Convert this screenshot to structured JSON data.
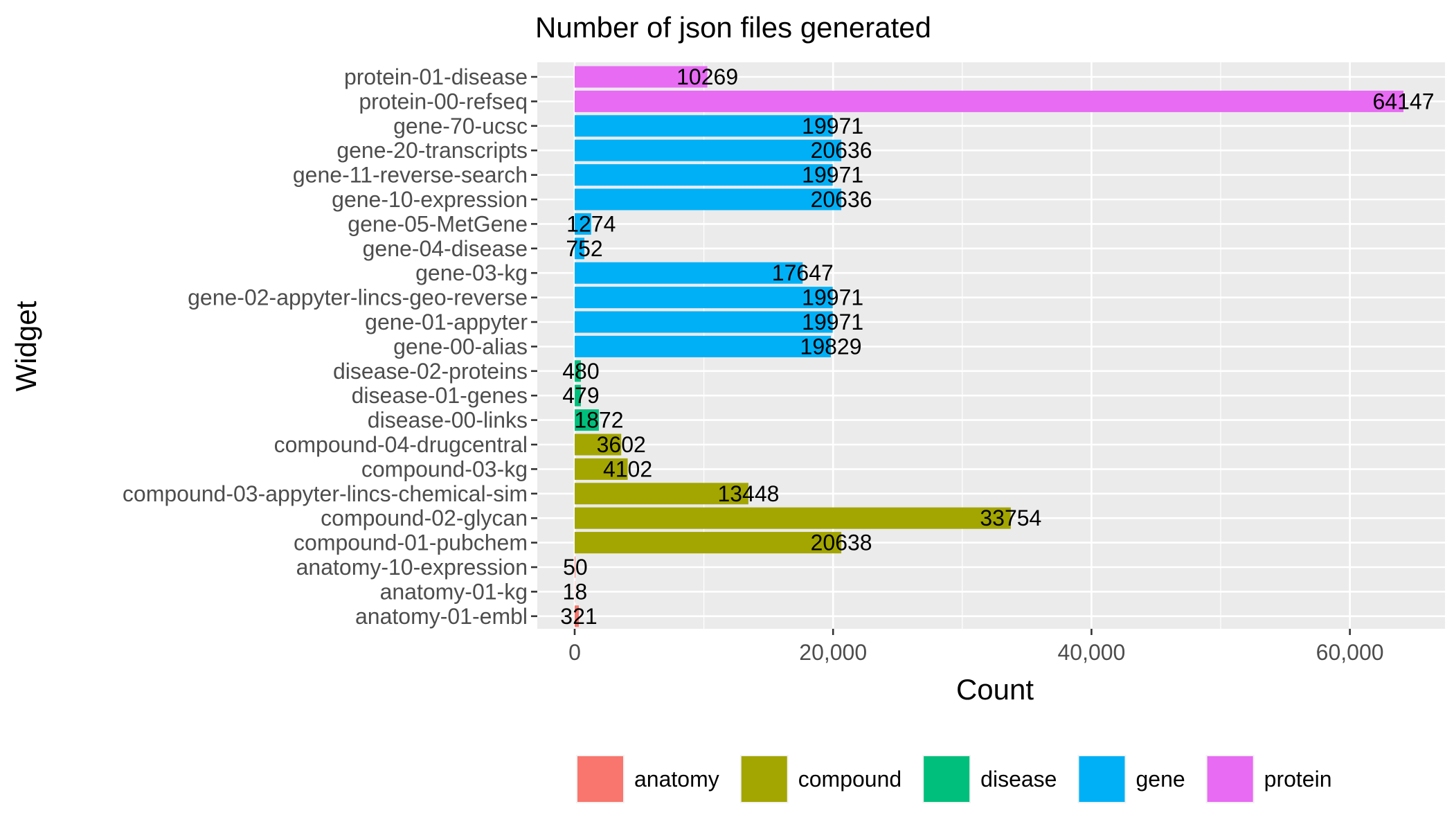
{
  "chart_data": {
    "type": "bar",
    "orientation": "horizontal",
    "title": "Number of json files generated",
    "xlabel": "Count",
    "ylabel": "Widget",
    "xlim": [
      0,
      70000
    ],
    "x_ticks": [
      0,
      20000,
      40000,
      60000
    ],
    "x_tick_labels": [
      "0",
      "20,000",
      "40,000",
      "60,000"
    ],
    "grid": true,
    "legend_position": "bottom",
    "legend": [
      {
        "key": "anatomy",
        "label": "anatomy",
        "color": "#F8766D"
      },
      {
        "key": "compound",
        "label": "compound",
        "color": "#A3A500"
      },
      {
        "key": "disease",
        "label": "disease",
        "color": "#00BF7D"
      },
      {
        "key": "gene",
        "label": "gene",
        "color": "#00B0F6"
      },
      {
        "key": "protein",
        "label": "protein",
        "color": "#E76BF3"
      }
    ],
    "bars": [
      {
        "category": "protein-01-disease",
        "value": 10269,
        "label": "10269",
        "group": "protein"
      },
      {
        "category": "protein-00-refseq",
        "value": 64147,
        "label": "64147",
        "group": "protein"
      },
      {
        "category": "gene-70-ucsc",
        "value": 19971,
        "label": "19971",
        "group": "gene"
      },
      {
        "category": "gene-20-transcripts",
        "value": 20636,
        "label": "20636",
        "group": "gene"
      },
      {
        "category": "gene-11-reverse-search",
        "value": 19971,
        "label": "19971",
        "group": "gene"
      },
      {
        "category": "gene-10-expression",
        "value": 20636,
        "label": "20636",
        "group": "gene"
      },
      {
        "category": "gene-05-MetGene",
        "value": 1274,
        "label": "1274",
        "group": "gene"
      },
      {
        "category": "gene-04-disease",
        "value": 752,
        "label": "752",
        "group": "gene"
      },
      {
        "category": "gene-03-kg",
        "value": 17647,
        "label": "17647",
        "group": "gene"
      },
      {
        "category": "gene-02-appyter-lincs-geo-reverse",
        "value": 19971,
        "label": "19971",
        "group": "gene"
      },
      {
        "category": "gene-01-appyter",
        "value": 19971,
        "label": "19971",
        "group": "gene"
      },
      {
        "category": "gene-00-alias",
        "value": 19829,
        "label": "19829",
        "group": "gene"
      },
      {
        "category": "disease-02-proteins",
        "value": 480,
        "label": "480",
        "group": "disease"
      },
      {
        "category": "disease-01-genes",
        "value": 479,
        "label": "479",
        "group": "disease"
      },
      {
        "category": "disease-00-links",
        "value": 1872,
        "label": "1872",
        "group": "disease"
      },
      {
        "category": "compound-04-drugcentral",
        "value": 3602,
        "label": "3602",
        "group": "compound"
      },
      {
        "category": "compound-03-kg",
        "value": 4102,
        "label": "4102",
        "group": "compound"
      },
      {
        "category": "compound-03-appyter-lincs-chemical-sim",
        "value": 13448,
        "label": "13448",
        "group": "compound"
      },
      {
        "category": "compound-02-glycan",
        "value": 33754,
        "label": "33754",
        "group": "compound"
      },
      {
        "category": "compound-01-pubchem",
        "value": 20638,
        "label": "20638",
        "group": "compound"
      },
      {
        "category": "anatomy-10-expression",
        "value": 50,
        "label": "50",
        "group": "anatomy"
      },
      {
        "category": "anatomy-01-kg",
        "value": 18,
        "label": "18",
        "group": "anatomy"
      },
      {
        "category": "anatomy-01-embl",
        "value": 321,
        "label": "321",
        "group": "anatomy"
      }
    ],
    "panel_background": "#EBEBEB",
    "grid_color": "#FFFFFF"
  }
}
